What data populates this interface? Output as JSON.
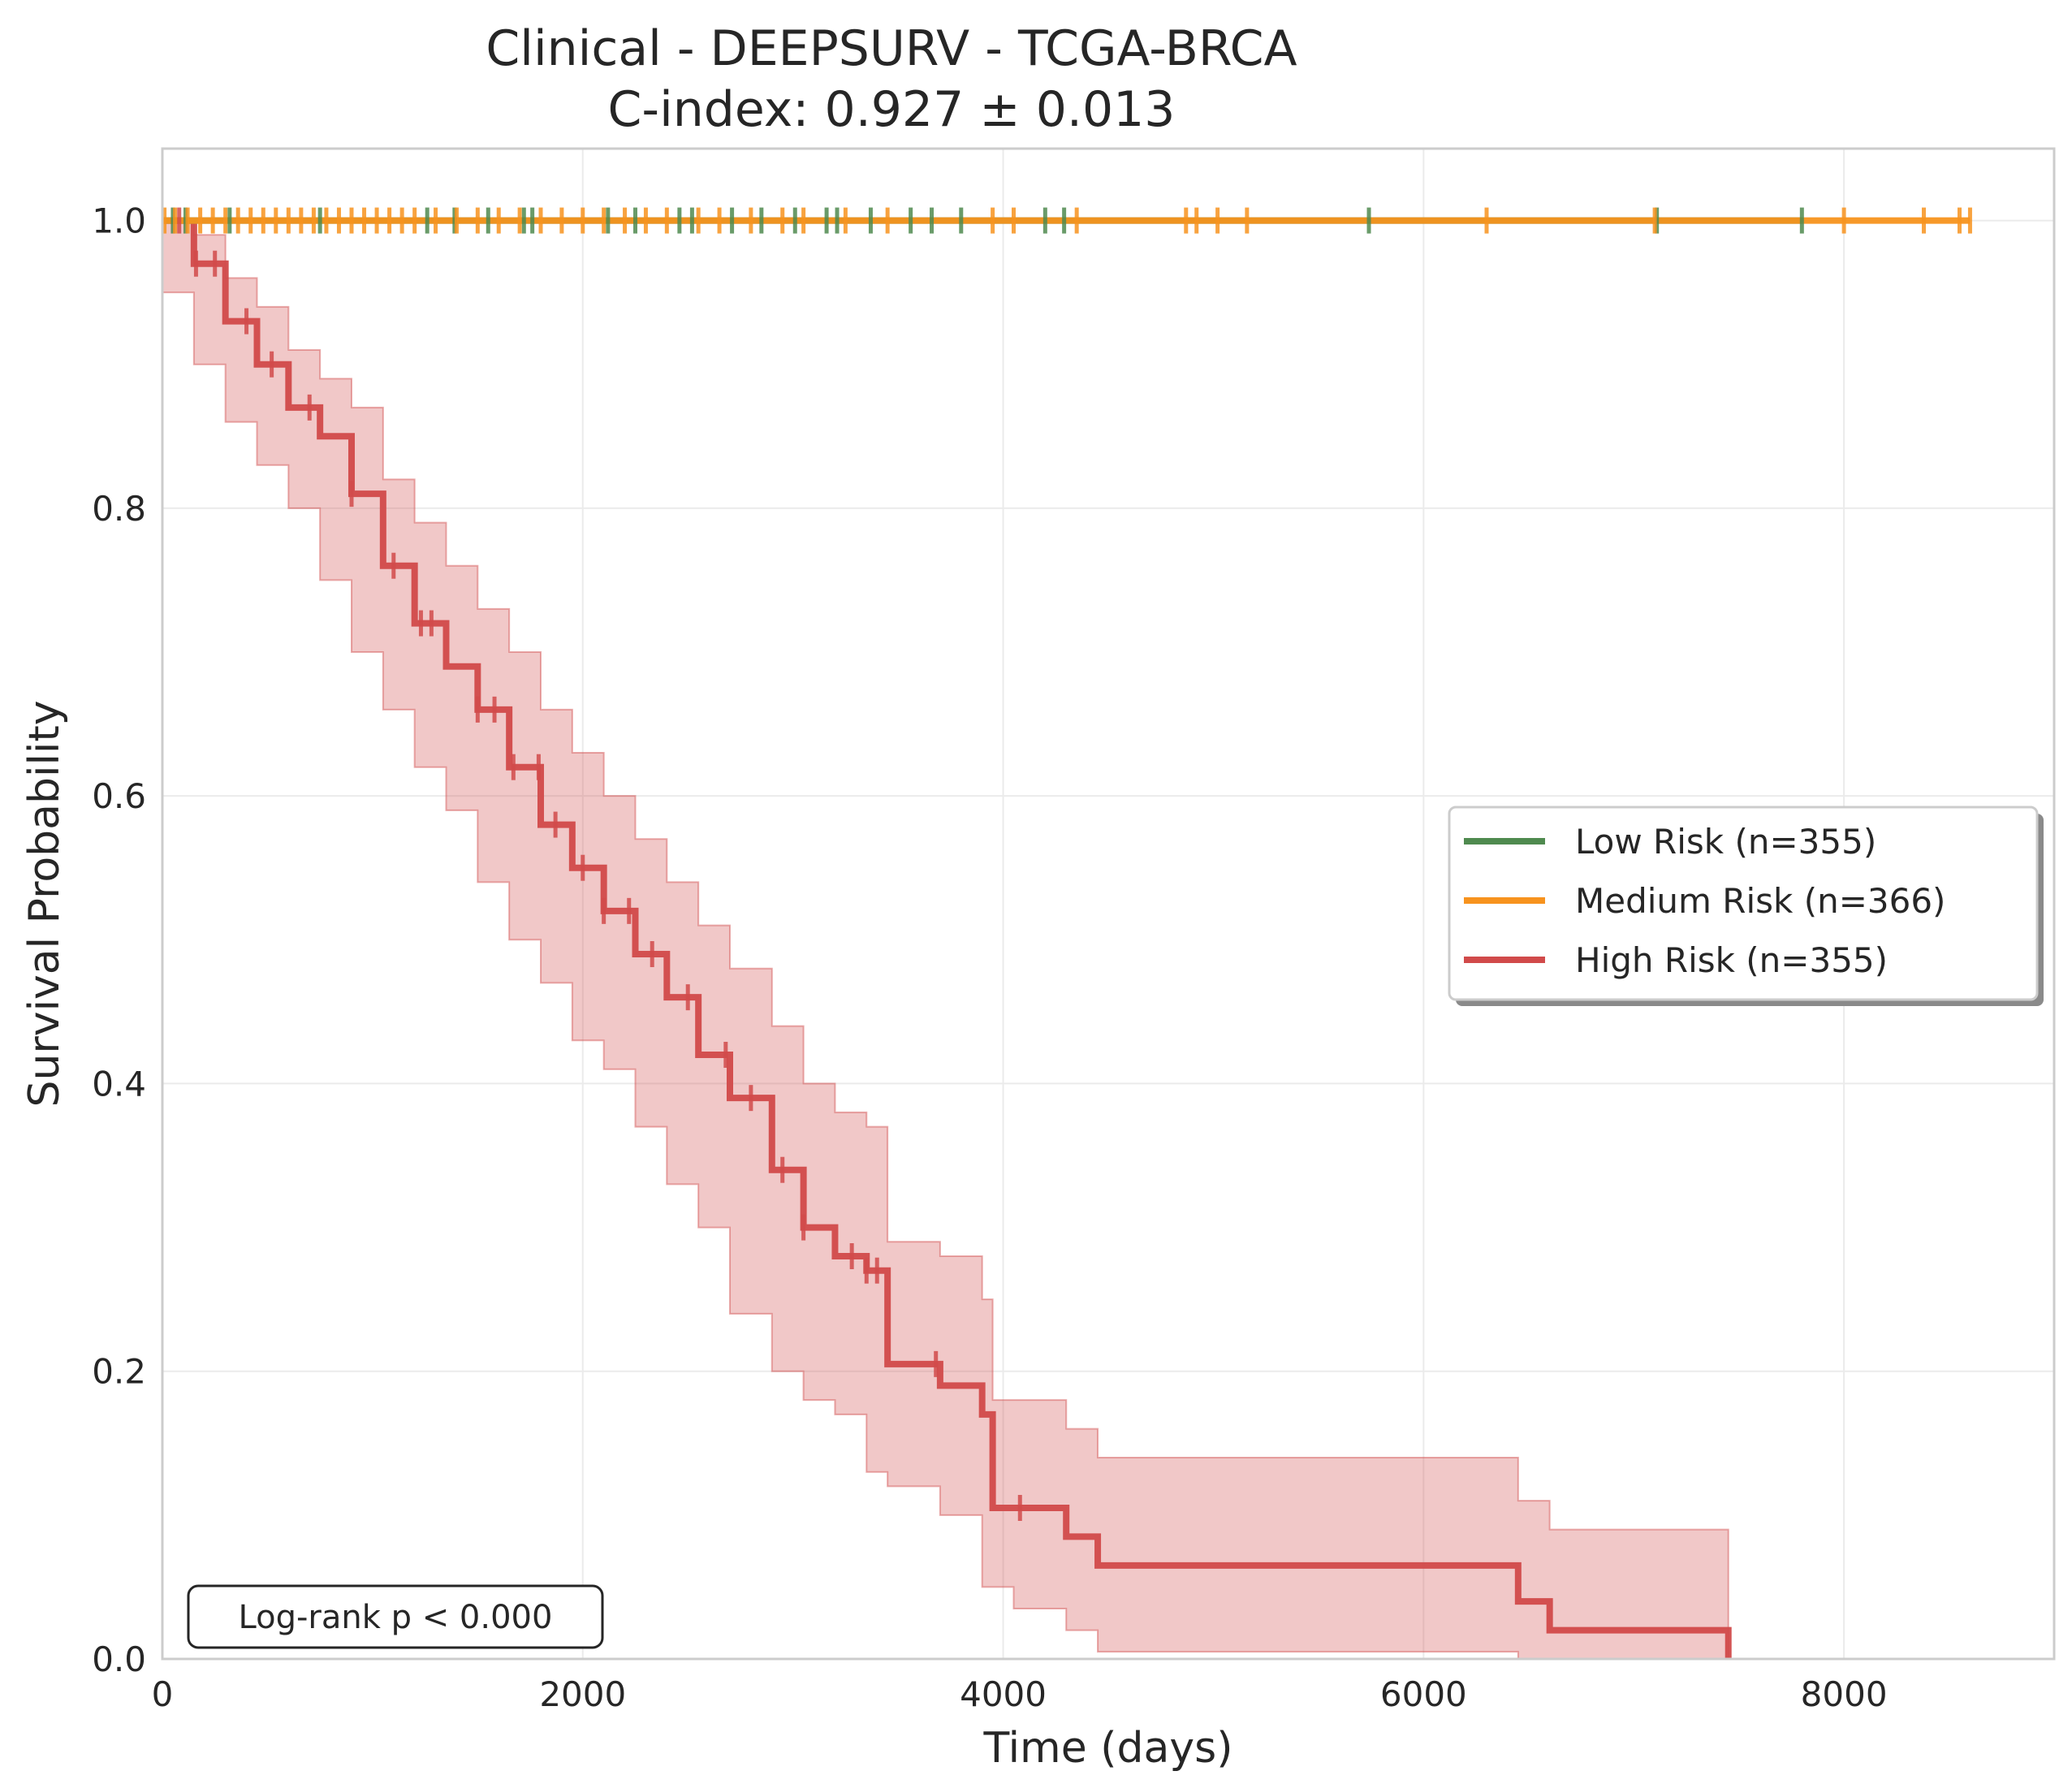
{
  "chart_data": {
    "type": "line",
    "title": "Clinical - DEEPSURV - TCGA-BRCA",
    "subtitle": "C-index: 0.927 ± 0.013",
    "xlabel": "Time (days)",
    "ylabel": "Survival Probability",
    "xlim": [
      0,
      9000
    ],
    "ylim": [
      0,
      1.05
    ],
    "xticks": [
      0,
      2000,
      4000,
      6000,
      8000
    ],
    "xtick_labels": [
      "0",
      "2000",
      "4000",
      "6000",
      "8000"
    ],
    "yticks": [
      0.0,
      0.2,
      0.4,
      0.6,
      0.8,
      1.0
    ],
    "ytick_labels": [
      "0.0",
      "0.2",
      "0.4",
      "0.6",
      "0.8",
      "1.0"
    ],
    "grid": true,
    "legend_position": "center-right",
    "annotation": "Log-rank p < 0.000",
    "series": [
      {
        "name": "Low Risk (n=355)",
        "color": "#4f8a4f",
        "x": [
          0,
          7800
        ],
        "y": [
          1.0,
          1.0
        ],
        "censor_x": [
          50,
          110,
          320,
          750,
          1260,
          1390,
          1550,
          1720,
          1760,
          2120,
          2250,
          2460,
          2520,
          2710,
          2850,
          3010,
          3160,
          3210,
          3370,
          3560,
          3660,
          3800,
          4200,
          4290,
          5740,
          7110,
          7800
        ]
      },
      {
        "name": "Medium Risk (n=366)",
        "color": "#f7931e",
        "x": [
          0,
          8600
        ],
        "y": [
          1.0,
          1.0
        ],
        "censor_x": [
          10,
          60,
          120,
          180,
          240,
          300,
          360,
          420,
          480,
          540,
          600,
          660,
          720,
          780,
          840,
          900,
          960,
          1020,
          1080,
          1140,
          1200,
          1300,
          1400,
          1500,
          1600,
          1700,
          1800,
          1900,
          2000,
          2100,
          2200,
          2300,
          2400,
          2550,
          2650,
          2800,
          2950,
          3050,
          3250,
          3450,
          3950,
          4050,
          4350,
          4870,
          4920,
          5020,
          5160,
          6300,
          7100,
          8000,
          8380,
          8550,
          8600
        ]
      },
      {
        "name": "High Risk (n=355)",
        "color": "#d14a4a",
        "x": [
          0,
          150,
          300,
          450,
          600,
          750,
          900,
          1050,
          1200,
          1350,
          1500,
          1650,
          1800,
          1950,
          2100,
          2250,
          2400,
          2550,
          2700,
          2900,
          3050,
          3200,
          3350,
          3450,
          3700,
          3900,
          3950,
          4050,
          4300,
          4450,
          6450,
          6600,
          7450,
          7450
        ],
        "y": [
          1.0,
          0.97,
          0.93,
          0.9,
          0.87,
          0.85,
          0.81,
          0.76,
          0.72,
          0.69,
          0.66,
          0.62,
          0.58,
          0.55,
          0.52,
          0.49,
          0.46,
          0.42,
          0.39,
          0.34,
          0.3,
          0.28,
          0.27,
          0.205,
          0.19,
          0.17,
          0.105,
          0.105,
          0.085,
          0.065,
          0.04,
          0.02,
          0.02,
          0.0
        ],
        "ci_lower": [
          1.0,
          0.95,
          0.9,
          0.86,
          0.83,
          0.8,
          0.75,
          0.7,
          0.66,
          0.62,
          0.59,
          0.54,
          0.5,
          0.47,
          0.43,
          0.41,
          0.37,
          0.33,
          0.3,
          0.24,
          0.2,
          0.18,
          0.17,
          0.13,
          0.12,
          0.1,
          0.05,
          0.05,
          0.035,
          0.02,
          0.005,
          0.0,
          0.0,
          0.0
        ],
        "ci_upper": [
          1.0,
          0.99,
          0.96,
          0.94,
          0.91,
          0.89,
          0.87,
          0.82,
          0.79,
          0.76,
          0.73,
          0.7,
          0.66,
          0.63,
          0.6,
          0.57,
          0.54,
          0.51,
          0.48,
          0.44,
          0.4,
          0.38,
          0.37,
          0.29,
          0.28,
          0.25,
          0.18,
          0.18,
          0.16,
          0.14,
          0.11,
          0.09,
          0.09,
          0.09
        ],
        "censor_x": [
          80,
          160,
          250,
          400,
          520,
          700,
          900,
          1100,
          1230,
          1280,
          1500,
          1580,
          1670,
          1790,
          1870,
          2000,
          2100,
          2220,
          2330,
          2500,
          2680,
          2800,
          2950,
          3050,
          3280,
          3350,
          3400,
          3680,
          4080
        ]
      }
    ]
  }
}
